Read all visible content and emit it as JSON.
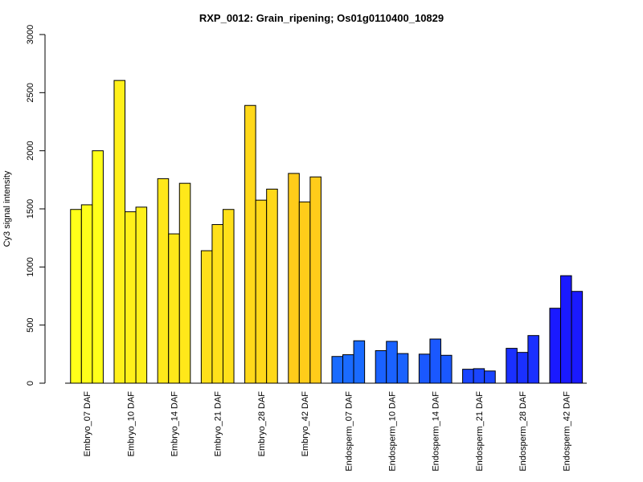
{
  "chart_data": {
    "type": "bar",
    "title": "RXP_0012: Grain_ripening; Os01g0110400_10829",
    "xlabel": "",
    "ylabel": "Cy3 signal intensity",
    "ylim": [
      0,
      3000
    ],
    "yticks": [
      0,
      500,
      1000,
      1500,
      2000,
      2500,
      3000
    ],
    "grid": false,
    "groups": [
      {
        "label": "Embryo_07 DAF",
        "color": "#FFFF1A",
        "values": [
          1495,
          1535,
          2000
        ]
      },
      {
        "label": "Embryo_10 DAF",
        "color": "#FFF01A",
        "values": [
          2605,
          1475,
          1515
        ]
      },
      {
        "label": "Embryo_14 DAF",
        "color": "#FFE81A",
        "values": [
          1760,
          1285,
          1720
        ]
      },
      {
        "label": "Embryo_21 DAF",
        "color": "#FFE01A",
        "values": [
          1140,
          1365,
          1495
        ]
      },
      {
        "label": "Embryo_28 DAF",
        "color": "#FFD81A",
        "values": [
          2390,
          1575,
          1670
        ]
      },
      {
        "label": "Embryo_42 DAF",
        "color": "#FFCC1A",
        "values": [
          1805,
          1560,
          1775
        ]
      },
      {
        "label": "Endosperm_07 DAF",
        "color": "#1A6BFF",
        "values": [
          230,
          245,
          365
        ]
      },
      {
        "label": "Endosperm_10 DAF",
        "color": "#1A62FF",
        "values": [
          280,
          360,
          255
        ]
      },
      {
        "label": "Endosperm_14 DAF",
        "color": "#1A58FF",
        "values": [
          250,
          380,
          240
        ]
      },
      {
        "label": "Endosperm_21 DAF",
        "color": "#1A45FF",
        "values": [
          120,
          125,
          105
        ]
      },
      {
        "label": "Endosperm_28 DAF",
        "color": "#1A30FF",
        "values": [
          300,
          265,
          410
        ]
      },
      {
        "label": "Endosperm_42 DAF",
        "color": "#1A1AFF",
        "values": [
          645,
          925,
          790
        ]
      }
    ]
  }
}
